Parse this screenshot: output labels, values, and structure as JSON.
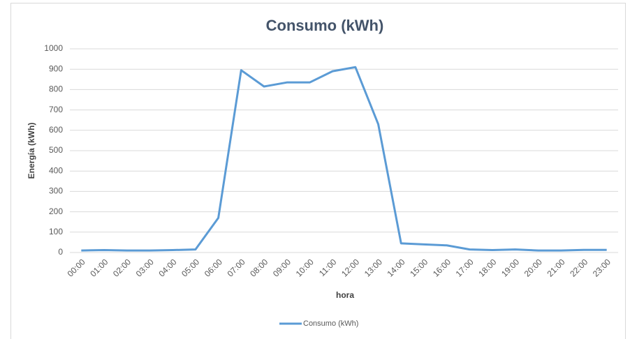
{
  "chart_data": {
    "type": "line",
    "title": "Consumo (kWh)",
    "x_label": "hora",
    "y_label": "Energía (kWh)",
    "categories": [
      "00:00",
      "01:00",
      "02:00",
      "03:00",
      "04:00",
      "05:00",
      "06:00",
      "07:00",
      "08:00",
      "09:00",
      "10:00",
      "11:00",
      "12:00",
      "13:00",
      "14:00",
      "15:00",
      "16:00",
      "17:00",
      "18:00",
      "19:00",
      "20:00",
      "21:00",
      "22:00",
      "23:00"
    ],
    "series": [
      {
        "name": "Consumo (kWh)",
        "color": "#5b9bd5",
        "values": [
          10,
          12,
          10,
          10,
          12,
          15,
          170,
          895,
          815,
          835,
          835,
          890,
          910,
          630,
          45,
          40,
          35,
          15,
          12,
          15,
          10,
          10,
          13,
          13
        ]
      }
    ],
    "ylim": [
      0,
      1000
    ],
    "yticks": [
      0,
      100,
      200,
      300,
      400,
      500,
      600,
      700,
      800,
      900,
      1000
    ],
    "grid": true,
    "legend": "bottom"
  }
}
